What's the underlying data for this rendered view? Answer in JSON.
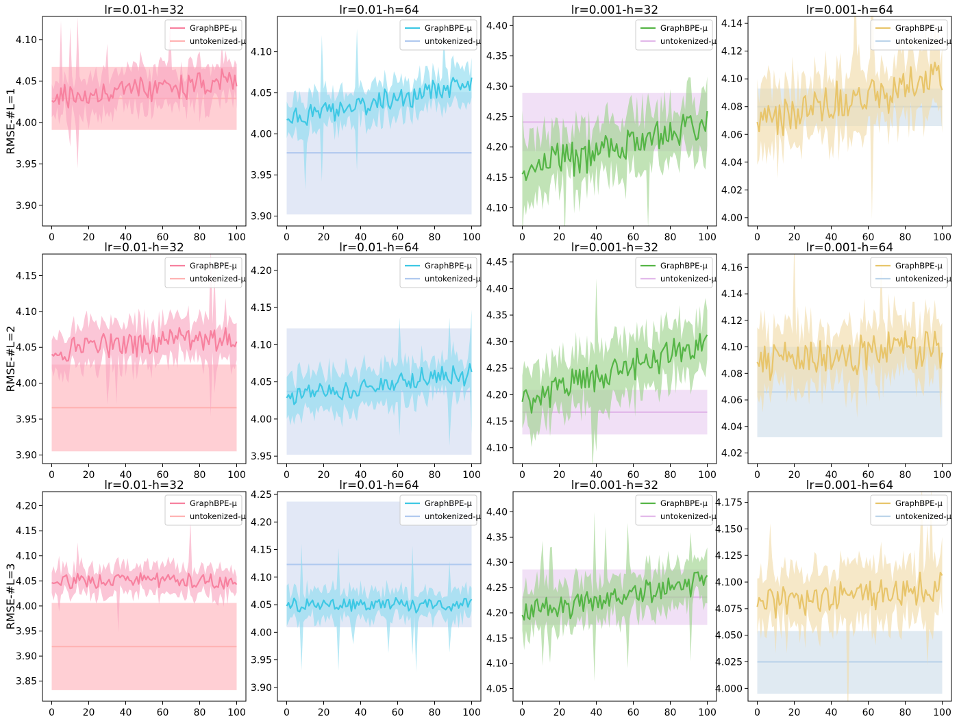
{
  "figure": {
    "row_labels": [
      "RMSE-#L=1",
      "RMSE-#L=2",
      "RMSE-#L=3"
    ],
    "x_ticks": [
      0,
      20,
      40,
      60,
      80,
      100
    ],
    "legend": {
      "series_label": "GraphBPE-μ",
      "baseline_label": "untokenized-μ",
      "placement": "top-right"
    }
  },
  "chart_data": [
    {
      "type": "line",
      "title": "lr=0.01-h=32",
      "row": 0,
      "col": 0,
      "ylabel": "RMSE-#L=1",
      "yticks": [
        "3.90",
        "3.95",
        "4.00",
        "4.05",
        "4.10"
      ],
      "ylim": [
        3.875,
        4.128
      ],
      "xlim": [
        -5,
        105
      ],
      "series_mean_start": 4.03,
      "series_mean_end": 4.05,
      "series_band": 0.022,
      "series_noise": 0.014,
      "baseline": {
        "value": 4.029,
        "low": 3.991,
        "high": 4.067
      },
      "colors": {
        "line": "#f7819f",
        "band": "#f9a8c1",
        "baseline": "#ffb3b3",
        "baseline_band": "#ffc7cc"
      },
      "seed": 11
    },
    {
      "type": "line",
      "title": "lr=0.01-h=64",
      "row": 0,
      "col": 1,
      "ylabel": "",
      "yticks": [
        "3.90",
        "3.95",
        "4.00",
        "4.05",
        "4.10"
      ],
      "ylim": [
        3.888,
        4.143
      ],
      "xlim": [
        -5,
        105
      ],
      "series_mean_start": 4.02,
      "series_mean_end": 4.06,
      "series_band": 0.02,
      "series_noise": 0.012,
      "baseline": {
        "value": 3.977,
        "low": 3.902,
        "high": 4.051
      },
      "colors": {
        "line": "#3ec8e4",
        "band": "#8fdcef",
        "baseline": "#b0c9ef",
        "baseline_band": "#dde4f5"
      },
      "seed": 23
    },
    {
      "type": "line",
      "title": "lr=0.001-h=32",
      "row": 0,
      "col": 2,
      "ylabel": "",
      "yticks": [
        "4.10",
        "4.15",
        "4.20",
        "4.25",
        "4.30",
        "4.35",
        "4.40"
      ],
      "ylim": [
        4.07,
        4.415
      ],
      "xlim": [
        -5,
        105
      ],
      "series_mean_start": 4.16,
      "series_mean_end": 4.24,
      "series_band": 0.045,
      "series_noise": 0.028,
      "baseline": {
        "value": 4.241,
        "low": 4.193,
        "high": 4.289
      },
      "colors": {
        "line": "#55b546",
        "band": "#9fd48f",
        "baseline": "#e2b9ea",
        "baseline_band": "#efdaf5"
      },
      "seed": 37
    },
    {
      "type": "line",
      "title": "lr=0.001-h=64",
      "row": 0,
      "col": 3,
      "ylabel": "",
      "yticks": [
        "4.00",
        "4.02",
        "4.04",
        "4.06",
        "4.08",
        "4.10",
        "4.12",
        "4.14"
      ],
      "ylim": [
        3.994,
        4.145
      ],
      "xlim": [
        -5,
        105
      ],
      "series_mean_start": 4.07,
      "series_mean_end": 4.1,
      "series_band": 0.022,
      "series_noise": 0.013,
      "baseline": {
        "value": 4.08,
        "low": 4.066,
        "high": 4.093
      },
      "colors": {
        "line": "#e8c56b",
        "band": "#f1dcaa",
        "baseline": "#bcd4ea",
        "baseline_band": "#dbe6f0"
      },
      "seed": 41
    },
    {
      "type": "line",
      "title": "lr=0.01-h=32",
      "row": 1,
      "col": 0,
      "ylabel": "RMSE-#L=2",
      "yticks": [
        "3.90",
        "3.95",
        "4.00",
        "4.05",
        "4.10",
        "4.15"
      ],
      "ylim": [
        3.888,
        4.18
      ],
      "xlim": [
        -5,
        105
      ],
      "series_mean_start": 4.045,
      "series_mean_end": 4.065,
      "series_band": 0.028,
      "series_noise": 0.016,
      "baseline": {
        "value": 3.966,
        "low": 3.905,
        "high": 4.026
      },
      "colors": {
        "line": "#f7819f",
        "band": "#f9a8c1",
        "baseline": "#ffb3b3",
        "baseline_band": "#ffc7cc"
      },
      "seed": 53
    },
    {
      "type": "line",
      "title": "lr=0.01-h=64",
      "row": 1,
      "col": 1,
      "ylabel": "",
      "yticks": [
        "3.95",
        "4.00",
        "4.05",
        "4.10",
        "4.15",
        "4.20"
      ],
      "ylim": [
        3.94,
        4.222
      ],
      "xlim": [
        -5,
        105
      ],
      "series_mean_start": 4.03,
      "series_mean_end": 4.06,
      "series_band": 0.025,
      "series_noise": 0.014,
      "baseline": {
        "value": 4.037,
        "low": 3.952,
        "high": 4.122
      },
      "colors": {
        "line": "#3ec8e4",
        "band": "#8fdcef",
        "baseline": "#b0c9ef",
        "baseline_band": "#dde4f5"
      },
      "seed": 61
    },
    {
      "type": "line",
      "title": "lr=0.001-h=32",
      "row": 1,
      "col": 2,
      "ylabel": "",
      "yticks": [
        "4.10",
        "4.15",
        "4.20",
        "4.25",
        "4.30",
        "4.35",
        "4.40",
        "4.45"
      ],
      "ylim": [
        4.07,
        4.465
      ],
      "xlim": [
        -5,
        105
      ],
      "series_mean_start": 4.19,
      "series_mean_end": 4.3,
      "series_band": 0.05,
      "series_noise": 0.026,
      "baseline": {
        "value": 4.167,
        "low": 4.125,
        "high": 4.209
      },
      "colors": {
        "line": "#55b546",
        "band": "#9fd48f",
        "baseline": "#e2b9ea",
        "baseline_band": "#efdaf5"
      },
      "seed": 71
    },
    {
      "type": "line",
      "title": "lr=0.001-h=64",
      "row": 1,
      "col": 3,
      "ylabel": "",
      "yticks": [
        "4.02",
        "4.04",
        "4.06",
        "4.08",
        "4.10",
        "4.12",
        "4.14",
        "4.16"
      ],
      "ylim": [
        4.012,
        4.17
      ],
      "xlim": [
        -5,
        105
      ],
      "series_mean_start": 4.09,
      "series_mean_end": 4.1,
      "series_band": 0.022,
      "series_noise": 0.013,
      "baseline": {
        "value": 4.066,
        "low": 4.032,
        "high": 4.1
      },
      "colors": {
        "line": "#e8c56b",
        "band": "#f1dcaa",
        "baseline": "#bcd4ea",
        "baseline_band": "#dbe6f0"
      },
      "seed": 83
    },
    {
      "type": "line",
      "title": "lr=0.01-h=32",
      "row": 2,
      "col": 0,
      "ylabel": "RMSE-#L=3",
      "yticks": [
        "3.85",
        "3.90",
        "3.95",
        "4.00",
        "4.05",
        "4.10",
        "4.15",
        "4.20"
      ],
      "ylim": [
        3.81,
        4.228
      ],
      "xlim": [
        -5,
        105
      ],
      "series_mean_start": 4.05,
      "series_mean_end": 4.05,
      "series_band": 0.025,
      "series_noise": 0.013,
      "baseline": {
        "value": 3.919,
        "low": 3.832,
        "high": 4.006
      },
      "colors": {
        "line": "#f7819f",
        "band": "#f9a8c1",
        "baseline": "#ffb3b3",
        "baseline_band": "#ffc7cc"
      },
      "seed": 97
    },
    {
      "type": "line",
      "title": "lr=0.01-h=64",
      "row": 2,
      "col": 1,
      "ylabel": "",
      "yticks": [
        "3.90",
        "3.95",
        "4.00",
        "4.05",
        "4.10",
        "4.15",
        "4.20",
        "4.25"
      ],
      "ylim": [
        3.875,
        4.255
      ],
      "xlim": [
        -5,
        105
      ],
      "series_mean_start": 4.05,
      "series_mean_end": 4.05,
      "series_band": 0.025,
      "series_noise": 0.012,
      "baseline": {
        "value": 4.123,
        "low": 4.009,
        "high": 4.237
      },
      "colors": {
        "line": "#3ec8e4",
        "band": "#8fdcef",
        "baseline": "#b0c9ef",
        "baseline_band": "#dde4f5"
      },
      "seed": 101
    },
    {
      "type": "line",
      "title": "lr=0.001-h=32",
      "row": 2,
      "col": 2,
      "ylabel": "",
      "yticks": [
        "4.05",
        "4.10",
        "4.15",
        "4.20",
        "4.25",
        "4.30",
        "4.35",
        "4.40"
      ],
      "ylim": [
        4.025,
        4.44
      ],
      "xlim": [
        -5,
        105
      ],
      "series_mean_start": 4.2,
      "series_mean_end": 4.26,
      "series_band": 0.04,
      "series_noise": 0.024,
      "baseline": {
        "value": 4.231,
        "low": 4.176,
        "high": 4.286
      },
      "colors": {
        "line": "#55b546",
        "band": "#9fd48f",
        "baseline": "#e2b9ea",
        "baseline_band": "#efdaf5"
      },
      "seed": 113
    },
    {
      "type": "line",
      "title": "lr=0.001-h=64",
      "row": 2,
      "col": 3,
      "ylabel": "",
      "yticks": [
        "4.000",
        "4.025",
        "4.050",
        "4.075",
        "4.100",
        "4.125",
        "4.150",
        "4.175"
      ],
      "ylim": [
        3.988,
        4.185
      ],
      "xlim": [
        -5,
        105
      ],
      "series_mean_start": 4.08,
      "series_mean_end": 4.095,
      "series_band": 0.025,
      "series_noise": 0.013,
      "baseline": {
        "value": 4.025,
        "low": 3.995,
        "high": 4.054
      },
      "colors": {
        "line": "#e8c56b",
        "band": "#f1dcaa",
        "baseline": "#bcd4ea",
        "baseline_band": "#dbe6f0"
      },
      "seed": 131
    }
  ]
}
